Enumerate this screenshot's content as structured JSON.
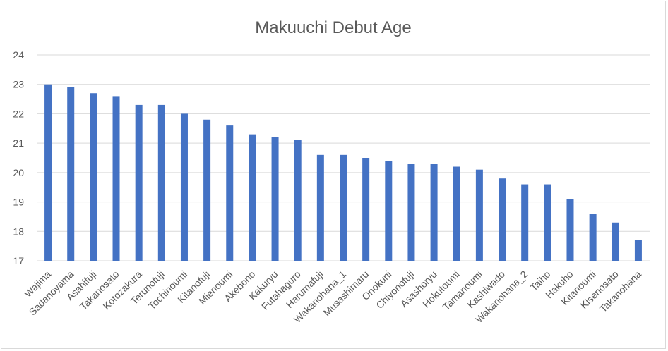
{
  "chart_data": {
    "type": "bar",
    "title": "Makuuchi Debut Age",
    "xlabel": "",
    "ylabel": "",
    "ylim": [
      17,
      24
    ],
    "yticks": [
      "17",
      "18",
      "19",
      "20",
      "21",
      "22",
      "23",
      "24"
    ],
    "grid": true,
    "legend": "none",
    "bar_color": "#4472c4",
    "grid_color": "#d9d9d9",
    "categories": [
      "Wajima",
      "Sadanoyama",
      "Asahifuji",
      "Takanosato",
      "Kotozakura",
      "Terunofuji",
      "Tochinoumi",
      "Kitanofuji",
      "Mienoumi",
      "Akebono",
      "Kakuryu",
      "Futahaguro",
      "Harumafuji",
      "Wakanohana_1",
      "Musashimaru",
      "Onokuni",
      "Chiyonofuji",
      "Asashoryu",
      "Hokutoumi",
      "Tamanoumi",
      "Kashiwado",
      "Wakanohana_2",
      "Taiho",
      "Hakuho",
      "Kitanoumi",
      "Kisenosato",
      "Takanohana"
    ],
    "values": [
      23.0,
      22.9,
      22.7,
      22.6,
      22.3,
      22.3,
      22.0,
      21.8,
      21.6,
      21.3,
      21.2,
      21.1,
      20.6,
      20.6,
      20.5,
      20.4,
      20.3,
      20.3,
      20.2,
      20.1,
      19.8,
      19.6,
      19.6,
      19.1,
      18.6,
      18.3,
      17.7
    ]
  }
}
